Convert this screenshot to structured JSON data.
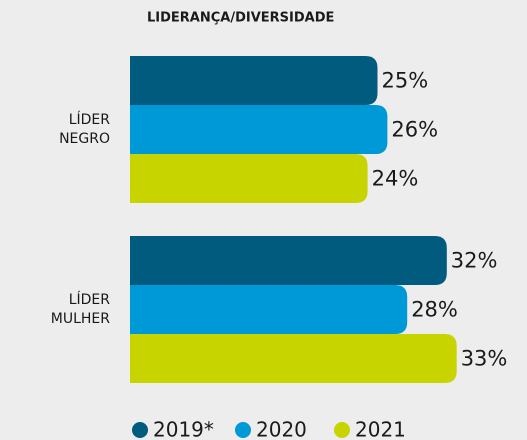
{
  "chart_data": {
    "type": "bar",
    "orientation": "horizontal",
    "title": "LIDERANÇA/DIVERSIDADE",
    "categories": [
      "LÍDER NEGRO",
      "LÍDER MULHER"
    ],
    "series": [
      {
        "name": "2019*",
        "color": "#005b7f",
        "values": [
          25,
          32
        ],
        "value_labels": [
          "25%",
          "32%"
        ]
      },
      {
        "name": "2020",
        "color": "#0099d8",
        "values": [
          26,
          28
        ],
        "value_labels": [
          "26%",
          "28%"
        ]
      },
      {
        "name": "2021",
        "color": "#c8d400",
        "values": [
          24,
          33
        ],
        "value_labels": [
          "24%",
          "33%"
        ]
      }
    ],
    "xlim": [
      0,
      40
    ]
  }
}
